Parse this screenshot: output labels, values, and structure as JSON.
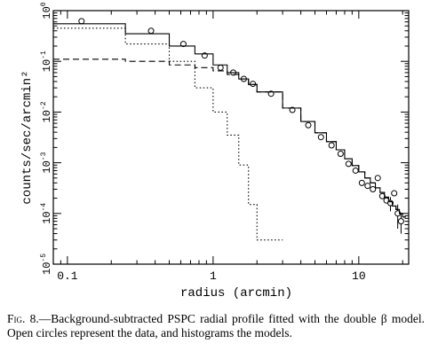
{
  "chart_data": {
    "type": "line",
    "xlabel": "radius (arcmin)",
    "ylabel": "counts/sec/arcmin²",
    "xscale": "log",
    "yscale": "log",
    "xlim": [
      0.08,
      22
    ],
    "ylim": [
      1e-05,
      1
    ],
    "xticks": [
      {
        "value": 0.1,
        "label": "0.1"
      },
      {
        "value": 1,
        "label": "1"
      },
      {
        "value": 10,
        "label": "10"
      }
    ],
    "yticks": [
      {
        "value": 1,
        "mantissa": "10",
        "exp": "0"
      },
      {
        "value": 0.1,
        "mantissa": "10",
        "exp": "-1"
      },
      {
        "value": 0.01,
        "mantissa": "10",
        "exp": "-2"
      },
      {
        "value": 0.001,
        "mantissa": "10",
        "exp": "-3"
      },
      {
        "value": 0.0001,
        "mantissa": "10",
        "exp": "-4"
      },
      {
        "value": 1e-05,
        "mantissa": "10",
        "exp": "-5"
      }
    ],
    "series": [
      {
        "style": "circles",
        "x": [
          0.125,
          0.375,
          0.625,
          0.875,
          1.125,
          1.375,
          1.625,
          1.875,
          2.5,
          3.5,
          4.5,
          5.5,
          6.5,
          7.5,
          8.5,
          9.5,
          10.5,
          11.5,
          12.5,
          13.5,
          14.5,
          15.5,
          16.5,
          17.5,
          18.5,
          19.5
        ],
        "y": [
          0.62,
          0.4,
          0.22,
          0.13,
          0.075,
          0.06,
          0.045,
          0.036,
          0.023,
          0.011,
          0.0055,
          0.0032,
          0.0022,
          0.0015,
          0.00095,
          0.0007,
          0.0004,
          0.00035,
          0.0003,
          0.0005,
          0.00022,
          0.00018,
          0.00016,
          0.00025,
          0.0001,
          7e-05
        ],
        "yerr": [
          0,
          0,
          0,
          0,
          0,
          0,
          0,
          0,
          0,
          0,
          0,
          0,
          0,
          0,
          0,
          0,
          0,
          0,
          0,
          0,
          0,
          0,
          5e-05,
          0,
          5e-05,
          3e-05
        ]
      },
      {
        "style": "solid",
        "edges": [
          0.08,
          0.25,
          0.5,
          0.75,
          1,
          1.25,
          1.5,
          1.75,
          2,
          3,
          4,
          5,
          6,
          7,
          8,
          9,
          10,
          11,
          12,
          13,
          14,
          15,
          16,
          17,
          18,
          19,
          20,
          21
        ],
        "y": [
          0.55,
          0.35,
          0.2,
          0.14,
          0.085,
          0.06,
          0.045,
          0.035,
          0.025,
          0.012,
          0.0065,
          0.0039,
          0.0026,
          0.0018,
          0.0012,
          0.00088,
          0.00066,
          0.0005,
          0.0004,
          0.00032,
          0.00026,
          0.00021,
          0.00017,
          0.00014,
          0.00012,
          0.0001,
          8.5e-05
        ]
      },
      {
        "style": "dotted",
        "edges": [
          0.08,
          0.25,
          0.5,
          0.75,
          1,
          1.25,
          1.5,
          1.75,
          2,
          3
        ],
        "y": [
          0.45,
          0.22,
          0.1,
          0.03,
          0.01,
          0.0035,
          0.0009,
          0.00015,
          3e-05
        ]
      },
      {
        "style": "dashed",
        "edges": [
          0.08,
          0.25,
          0.5,
          0.75,
          1,
          1.25,
          1.5,
          1.75,
          2,
          3,
          4,
          5,
          6,
          7,
          8,
          9,
          10,
          11,
          12,
          13,
          14,
          15,
          16,
          17,
          18,
          19,
          20,
          21
        ],
        "y": [
          0.11,
          0.1,
          0.085,
          0.075,
          0.065,
          0.055,
          0.045,
          0.035,
          0.025,
          0.012,
          0.0065,
          0.0039,
          0.0026,
          0.0018,
          0.0012,
          0.00088,
          0.00066,
          0.0005,
          0.0004,
          0.00032,
          0.00026,
          0.00021,
          0.00017,
          0.00014,
          0.00012,
          0.0001,
          8.5e-05
        ]
      }
    ]
  },
  "caption": {
    "label": "Fig. 8.",
    "text": "—Background-subtracted PSPC radial profile fitted with the double β model. Open circles represent the data, and histograms the models."
  }
}
